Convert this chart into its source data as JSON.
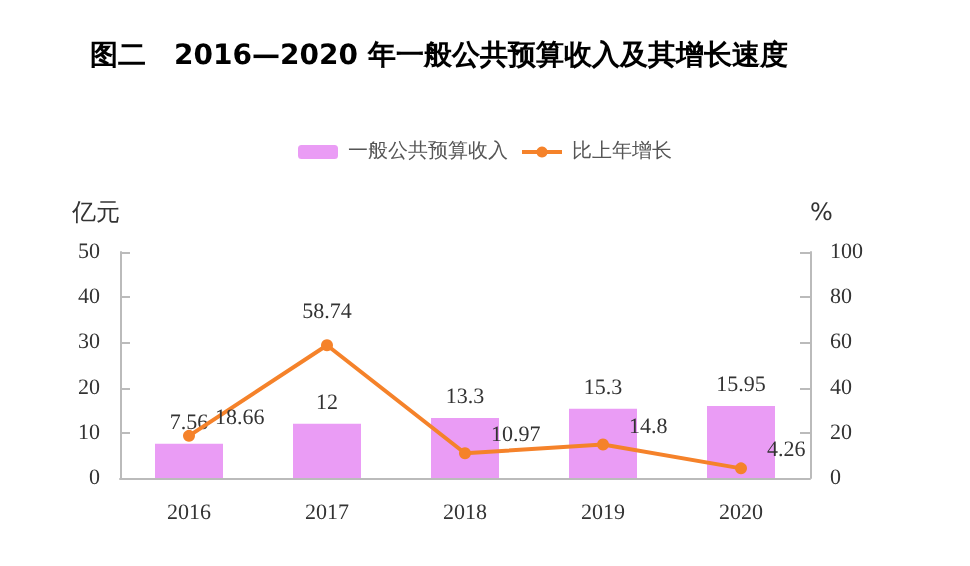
{
  "chart_data": {
    "type": "bar",
    "title": "图二　2016—2020 年一般公共预算收入及其增长速度",
    "categories": [
      "2016",
      "2017",
      "2018",
      "2019",
      "2020"
    ],
    "ylabel": "亿元",
    "y2label": "%",
    "ylim": [
      0,
      50
    ],
    "yticks": [
      0,
      10,
      20,
      30,
      40,
      50
    ],
    "y2lim": [
      0,
      100
    ],
    "y2ticks": [
      0,
      20,
      40,
      60,
      80,
      100
    ],
    "series": [
      {
        "name": "一般公共预算收入",
        "color": "#ea9cf5",
        "values": [
          7.56,
          12,
          13.3,
          15.3,
          15.95
        ]
      },
      {
        "name": "比上年增长",
        "type": "line",
        "axis": "y2",
        "color": "#f5822a",
        "values": [
          18.66,
          58.74,
          10.97,
          14.8,
          4.26
        ]
      }
    ],
    "data_labels": true,
    "legend": "top",
    "grid": false,
    "marker": "circle",
    "line_style": "solid"
  }
}
